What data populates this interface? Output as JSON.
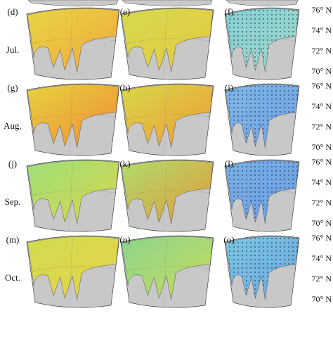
{
  "rows": [
    {
      "label": "Jul.",
      "panels": [
        "(d)",
        "(e)",
        "(f)"
      ]
    },
    {
      "label": "Aug.",
      "panels": [
        "(g)",
        "(h)",
        "(i)"
      ]
    },
    {
      "label": "Sep.",
      "panels": [
        "(j)",
        "(k)",
        "(l)"
      ]
    },
    {
      "label": "Oct.",
      "panels": [
        "(m)",
        "(n)",
        "(o)"
      ]
    }
  ],
  "lat_labels": [
    "76° N",
    "74° N",
    "72° N",
    "70° N"
  ]
}
